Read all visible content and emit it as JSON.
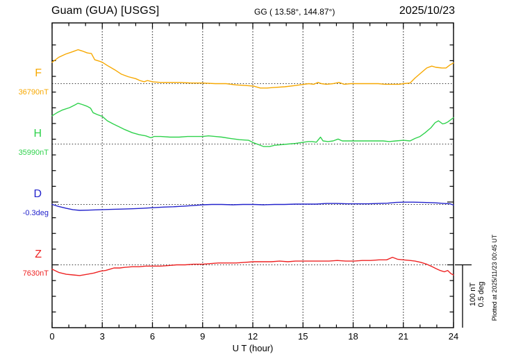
{
  "header": {
    "station": "Guam (GUA)  [USGS]",
    "coords": "GG ( 13.58°, 144.87°)",
    "date": "2025/10/23"
  },
  "xaxis": {
    "label": "U T (hour)",
    "ticks": [
      0,
      3,
      6,
      9,
      12,
      15,
      18,
      21,
      24
    ]
  },
  "scale_bar": {
    "line1": "100 nT",
    "line2": "0.5 deg"
  },
  "plotted_at": "Plotted at 2025/11/23 00:45 UT",
  "chart_data": {
    "type": "line",
    "title": "Guam (GUA) [USGS] magnetogram 2025/10/23",
    "xlabel": "U T (hour)",
    "xlim": [
      0,
      24
    ],
    "x_ticks": [
      0,
      3,
      6,
      9,
      12,
      15,
      18,
      21,
      24
    ],
    "grid": "vertical dotted every 3 h; dotted horizontal baseline per channel",
    "scale": {
      "nT_per_division": 100,
      "deg_per_division": 0.5
    },
    "series": [
      {
        "name": "F",
        "unit": "nT",
        "baseline": 36790,
        "baseline_label": "36790nT",
        "color": "#f7a800",
        "hours": [
          0,
          0.4,
          0.8,
          1.25,
          1.55,
          1.8,
          2.1,
          2.35,
          2.55,
          2.8,
          3,
          3.3,
          3.75,
          4.15,
          4.55,
          5,
          5.25,
          5.5,
          5.7,
          6,
          6.45,
          7.05,
          7.7,
          8.3,
          9,
          9.75,
          10.4,
          11,
          11.6,
          12.05,
          12.45,
          12.85,
          13.3,
          13.9,
          14.55,
          15.05,
          15.35,
          15.65,
          15.9,
          16.1,
          16.4,
          16.8,
          17.15,
          17.45,
          17.85,
          18.25,
          18.7,
          19.1,
          19.5,
          19.9,
          20.35,
          20.75,
          21,
          21.4,
          21.7,
          22.05,
          22.4,
          22.7,
          22.95,
          23.3,
          23.55,
          23.8,
          24
        ],
        "values": [
          36824,
          36832,
          36837,
          36841,
          36844,
          36842,
          36839,
          36838,
          36828,
          36826,
          36824,
          36819,
          36812,
          36805,
          36801,
          36798,
          36795,
          36793,
          36795,
          36793,
          36792,
          36792,
          36792,
          36791,
          36791,
          36790,
          36790,
          36788,
          36787,
          36786,
          36783,
          36783,
          36784,
          36785,
          36787,
          36789,
          36790,
          36789,
          36792,
          36790,
          36789,
          36790,
          36792,
          36789,
          36790,
          36790,
          36790,
          36790,
          36790,
          36789,
          36789,
          36789,
          36790,
          36791,
          36799,
          36807,
          36815,
          36818,
          36816,
          36815,
          36815,
          36820,
          36823
        ]
      },
      {
        "name": "H",
        "unit": "nT",
        "baseline": 35990,
        "baseline_label": "35990nT",
        "color": "#2fd24c",
        "hours": [
          0,
          0.3,
          0.6,
          1.05,
          1.35,
          1.55,
          1.8,
          2.1,
          2.3,
          2.45,
          2.7,
          3,
          3.3,
          3.65,
          4.05,
          4.35,
          4.8,
          5.2,
          5.6,
          5.9,
          6.1,
          6.5,
          7.05,
          7.6,
          8.1,
          8.5,
          9,
          9.35,
          9.75,
          10.15,
          10.65,
          11.2,
          11.75,
          12.05,
          12.35,
          12.65,
          13,
          13.3,
          13.7,
          14.1,
          14.55,
          15.05,
          15.3,
          15.55,
          15.8,
          16.05,
          16.2,
          16.5,
          16.8,
          17.1,
          17.35,
          17.65,
          18.05,
          18.5,
          19,
          19.45,
          19.8,
          20.15,
          20.55,
          21,
          21.4,
          21.7,
          22,
          22.3,
          22.65,
          22.9,
          23.1,
          23.35,
          23.5,
          23.65,
          23.85,
          24
        ],
        "values": [
          36035,
          36040,
          36044,
          36048,
          36052,
          36055,
          36053,
          36050,
          36047,
          36040,
          36037,
          36034,
          36027,
          36022,
          36017,
          36013,
          36008,
          36005,
          36003,
          36000,
          36002,
          36002,
          36001,
          36001,
          36002,
          36002,
          36002,
          36003,
          36002,
          36001,
          35999,
          35997,
          35996,
          35992,
          35989,
          35986,
          35986,
          35988,
          35989,
          35990,
          35991,
          35993,
          35994,
          35994,
          35993,
          36001,
          35995,
          35994,
          35995,
          35998,
          35995,
          35995,
          35995,
          35995,
          35995,
          35995,
          35995,
          35994,
          35995,
          35996,
          35995,
          35999,
          36002,
          36008,
          36016,
          36024,
          36027,
          36022,
          36023,
          36025,
          36029,
          36032
        ]
      },
      {
        "name": "D",
        "unit": "deg",
        "baseline": -0.3,
        "baseline_label": "-0.3deg",
        "color": "#2323cc",
        "hours": [
          0,
          0.4,
          0.85,
          1.25,
          1.65,
          2.3,
          2.9,
          3.55,
          4.15,
          4.8,
          5.4,
          6,
          6.65,
          7.25,
          7.9,
          8.5,
          9,
          9.55,
          10.15,
          10.8,
          11.4,
          12.05,
          12.65,
          13.3,
          13.9,
          14.55,
          15.15,
          15.8,
          16.4,
          17,
          17.65,
          18.25,
          18.9,
          19.5,
          20.05,
          20.55,
          21.05,
          21.6,
          22.2,
          22.85,
          23.45,
          23.8,
          24
        ],
        "values": [
          -0.3,
          -0.316,
          -0.331,
          -0.342,
          -0.347,
          -0.345,
          -0.342,
          -0.339,
          -0.337,
          -0.334,
          -0.331,
          -0.326,
          -0.321,
          -0.318,
          -0.313,
          -0.308,
          -0.303,
          -0.3,
          -0.3,
          -0.303,
          -0.3,
          -0.3,
          -0.303,
          -0.3,
          -0.3,
          -0.297,
          -0.297,
          -0.297,
          -0.292,
          -0.292,
          -0.295,
          -0.295,
          -0.295,
          -0.292,
          -0.29,
          -0.284,
          -0.282,
          -0.282,
          -0.284,
          -0.287,
          -0.292,
          -0.295,
          -0.305
        ]
      },
      {
        "name": "Z",
        "unit": "nT",
        "baseline": 7630,
        "baseline_label": "7630nT",
        "color": "#ee2222",
        "hours": [
          0,
          0.4,
          0.85,
          1.25,
          1.65,
          2.1,
          2.5,
          2.9,
          3.2,
          3.45,
          3.7,
          4.05,
          4.35,
          4.8,
          5.2,
          5.6,
          6,
          6.5,
          7,
          7.45,
          7.95,
          8.45,
          9,
          9.45,
          9.95,
          10.5,
          11,
          11.5,
          12.05,
          12.6,
          13.1,
          13.6,
          14.1,
          14.55,
          15.05,
          15.55,
          16.05,
          16.55,
          17.05,
          17.55,
          18.05,
          18.55,
          19.05,
          19.55,
          20,
          20.35,
          20.65,
          21,
          21.4,
          21.7,
          22.05,
          22.4,
          22.65,
          22.95,
          23.2,
          23.45,
          23.65,
          23.85,
          24
        ],
        "values": [
          7623,
          7618,
          7615,
          7614,
          7613,
          7615,
          7617,
          7620,
          7621,
          7623,
          7625,
          7625,
          7626,
          7627,
          7627,
          7628,
          7628,
          7628,
          7629,
          7630,
          7630,
          7631,
          7631,
          7632,
          7633,
          7633,
          7633,
          7634,
          7635,
          7635,
          7635,
          7636,
          7635,
          7636,
          7636,
          7636,
          7636,
          7636,
          7637,
          7636,
          7636,
          7637,
          7637,
          7638,
          7638,
          7642,
          7639,
          7638,
          7637,
          7636,
          7634,
          7631,
          7628,
          7624,
          7621,
          7619,
          7621,
          7616,
          7614
        ]
      }
    ]
  }
}
